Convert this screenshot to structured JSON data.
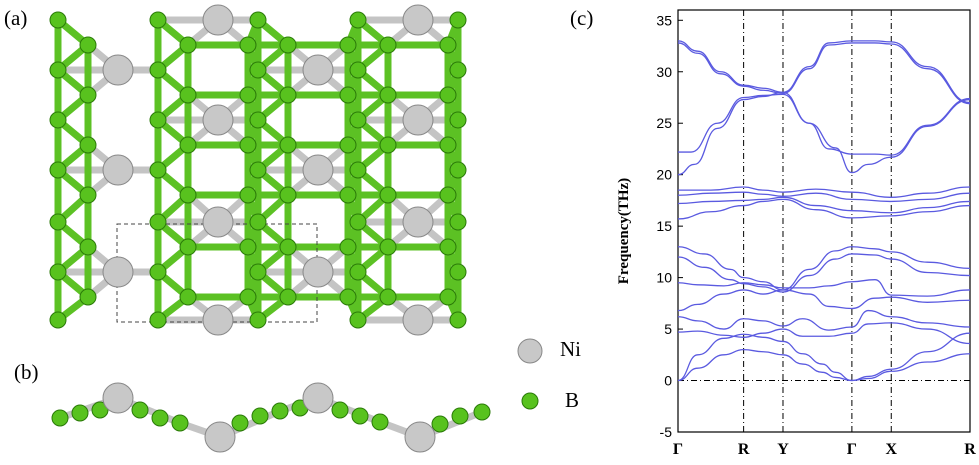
{
  "figure": {
    "panel_labels": {
      "a": "(a)",
      "b": "(b)",
      "c": "(c)"
    },
    "legend": {
      "ni": "Ni",
      "b": "B"
    },
    "colors": {
      "ni_atom": "#c8c8c8",
      "b_atom": "#58c21e",
      "bond_ni": "#c4c4c4",
      "bond_b": "#5cc124",
      "band": "#5a5ae0"
    }
  },
  "chart_data": {
    "type": "line",
    "title": "",
    "xlabel": "",
    "ylabel": "Frequency(THz)",
    "ylim": [
      -5,
      36
    ],
    "yticks": [
      -5,
      0,
      5,
      10,
      15,
      20,
      25,
      30,
      35
    ],
    "kpoints": [
      "Γ",
      "R",
      "Y",
      "Γ",
      "X",
      "R"
    ],
    "kpoint_x": [
      0,
      1,
      1.6,
      2.65,
      3.25,
      4.45
    ],
    "grid": false,
    "series": [
      {
        "x": [
          0,
          0.3,
          0.65,
          1,
          1.3,
          1.6,
          2.0,
          2.3,
          2.65,
          3.0,
          3.25,
          3.8,
          4.45
        ],
        "values": [
          33,
          32,
          30,
          28.7,
          28.4,
          28,
          30.5,
          32.8,
          33,
          33,
          32.9,
          30.5,
          27
        ]
      },
      {
        "x": [
          0,
          0.3,
          0.65,
          1,
          1.3,
          1.6,
          2.0,
          2.3,
          2.65,
          3.0,
          3.25,
          3.8,
          4.45
        ],
        "values": [
          32.8,
          31.8,
          29.8,
          28.6,
          28.2,
          27.9,
          30.3,
          32.6,
          32.8,
          32.8,
          32.7,
          30.3,
          26.9
        ]
      },
      {
        "x": [
          0,
          0.25,
          0.6,
          1,
          1.3,
          1.6,
          2.0,
          2.3,
          2.65,
          3.0,
          3.25,
          3.8,
          4.45
        ],
        "values": [
          20,
          21,
          24.5,
          27.3,
          27.6,
          28,
          25,
          22.5,
          22,
          22,
          21.9,
          24.8,
          27.4
        ]
      },
      {
        "x": [
          0,
          0.2,
          0.6,
          1,
          1.3,
          1.6,
          2.0,
          2.4,
          2.65,
          2.9,
          3.25,
          3.8,
          4.45
        ],
        "values": [
          22.2,
          22.2,
          25,
          27.5,
          27.7,
          27.8,
          25,
          22.6,
          20.2,
          21,
          21.7,
          24.7,
          27.3
        ]
      },
      {
        "x": [
          0,
          0.5,
          1,
          1.3,
          1.6,
          2.1,
          2.65,
          3.25,
          3.8,
          4.45
        ],
        "values": [
          18.5,
          18.5,
          18.8,
          18.5,
          18.3,
          18.6,
          18.3,
          17.8,
          18.2,
          18.8
        ]
      },
      {
        "x": [
          0,
          0.5,
          1,
          1.3,
          1.6,
          2.1,
          2.65,
          3.25,
          3.8,
          4.45
        ],
        "values": [
          18,
          18.2,
          18.3,
          18.1,
          17.9,
          18.2,
          17.6,
          17.4,
          17.6,
          18.2
        ]
      },
      {
        "x": [
          0,
          0.5,
          1,
          1.3,
          1.6,
          2.1,
          2.65,
          3.25,
          3.8,
          4.45
        ],
        "values": [
          17.2,
          17.4,
          17.5,
          17.6,
          17.8,
          17.0,
          16.5,
          16.3,
          16.8,
          17.4
        ]
      },
      {
        "x": [
          0,
          0.5,
          1,
          1.3,
          1.6,
          2.1,
          2.65,
          3.25,
          3.8,
          4.45
        ],
        "values": [
          15.7,
          16.4,
          17.0,
          17.4,
          17.6,
          16.6,
          15.8,
          16.0,
          16.4,
          17.0
        ]
      },
      {
        "x": [
          0,
          0.4,
          0.8,
          1,
          1.3,
          1.6,
          2.0,
          2.4,
          2.65,
          3.0,
          3.25,
          3.8,
          4.45
        ],
        "values": [
          13,
          12.3,
          10.8,
          10,
          9.6,
          8.8,
          10.8,
          12.6,
          13,
          12.8,
          12.5,
          11.5,
          10.9
        ]
      },
      {
        "x": [
          0,
          0.4,
          0.8,
          1,
          1.3,
          1.6,
          2.0,
          2.4,
          2.65,
          3.0,
          3.25,
          3.8,
          4.45
        ],
        "values": [
          12,
          11,
          9.8,
          9.4,
          9.1,
          8.6,
          10.2,
          11.8,
          12.3,
          12.2,
          11.8,
          10.5,
          10.2
        ]
      },
      {
        "x": [
          0,
          0.3,
          0.7,
          1,
          1.3,
          1.6,
          2.0,
          2.3,
          2.65,
          3.0,
          3.25,
          3.8,
          4.45
        ],
        "values": [
          9.5,
          9.3,
          9.2,
          9.5,
          9.3,
          9,
          9,
          9.2,
          9.6,
          9.8,
          8.3,
          8.2,
          8.8
        ]
      },
      {
        "x": [
          0,
          0.3,
          0.7,
          1,
          1.3,
          1.6,
          2.0,
          2.3,
          2.65,
          3.0,
          3.25,
          3.8,
          4.45
        ],
        "values": [
          6.8,
          7.4,
          8.4,
          8.8,
          8.4,
          8.8,
          8.4,
          7.2,
          7,
          8,
          8.1,
          7.6,
          7.8
        ]
      },
      {
        "x": [
          0,
          0.3,
          0.7,
          1,
          1.3,
          1.6,
          1.9,
          2.3,
          2.65,
          2.9,
          3.25,
          3.8,
          4.45
        ],
        "values": [
          6.2,
          5.8,
          5,
          6,
          5.8,
          5.3,
          6,
          4.9,
          5.2,
          6.8,
          6.2,
          5.6,
          5.2
        ]
      },
      {
        "x": [
          0,
          0.3,
          0.7,
          1,
          1.3,
          1.6,
          1.9,
          2.3,
          2.65,
          2.9,
          3.25,
          3.8,
          4.45
        ],
        "values": [
          4.7,
          4.8,
          4.4,
          4.2,
          4.6,
          5,
          4.3,
          4.3,
          4.6,
          5.5,
          5.6,
          5,
          3.6
        ]
      },
      {
        "x": [
          0,
          0.3,
          0.7,
          1,
          1.3,
          1.6,
          1.9,
          2.2,
          2.4,
          2.65,
          2.9,
          3.25,
          3.8,
          4.45
        ],
        "values": [
          0,
          2.5,
          4.1,
          4.5,
          4.2,
          3.8,
          2.6,
          1.6,
          0.8,
          0,
          0.4,
          1.1,
          2.8,
          4.6
        ]
      },
      {
        "x": [
          0,
          0.3,
          0.7,
          1,
          1.3,
          1.6,
          1.9,
          2.2,
          2.4,
          2.65,
          2.9,
          3.25,
          3.8,
          4.45
        ],
        "values": [
          0,
          1.2,
          2.5,
          3,
          2.8,
          2.5,
          1.6,
          0.8,
          0.3,
          0,
          0.2,
          0.9,
          1.8,
          2.6
        ]
      }
    ]
  }
}
